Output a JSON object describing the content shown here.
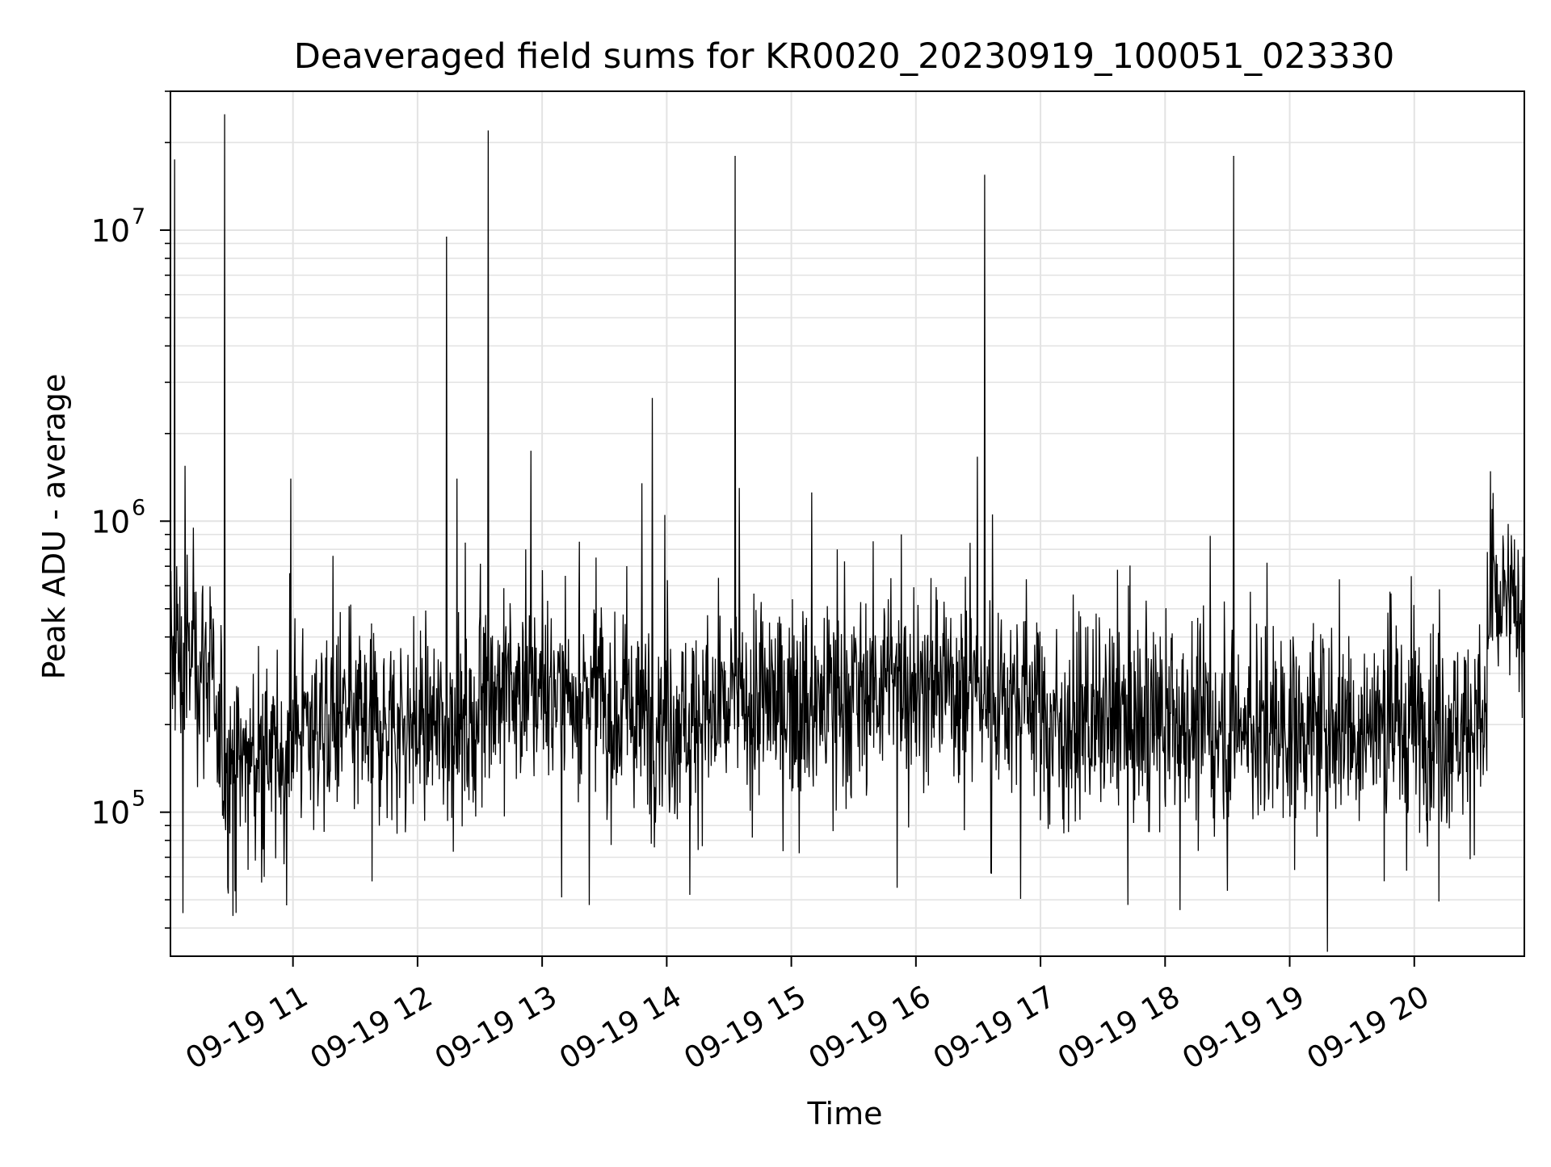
{
  "chart_data": {
    "type": "line",
    "title": "Deaveraged field sums for KR0020_20230919_100051_023330",
    "xlabel": "Time",
    "ylabel": "Peak ADU - average",
    "yscale": "log",
    "ylim": [
      32000,
      30000000
    ],
    "xlim": [
      "2023-09-19 10:01",
      "2023-09-19 20:53"
    ],
    "grid": true,
    "line_color": "#000000",
    "grid_color": "#e3e3e3",
    "x_ticks": [
      {
        "value": "2023-09-19 11:00",
        "label": "09-19 11"
      },
      {
        "value": "2023-09-19 12:00",
        "label": "09-19 12"
      },
      {
        "value": "2023-09-19 13:00",
        "label": "09-19 13"
      },
      {
        "value": "2023-09-19 14:00",
        "label": "09-19 14"
      },
      {
        "value": "2023-09-19 15:00",
        "label": "09-19 15"
      },
      {
        "value": "2023-09-19 16:00",
        "label": "09-19 16"
      },
      {
        "value": "2023-09-19 17:00",
        "label": "09-19 17"
      },
      {
        "value": "2023-09-19 18:00",
        "label": "09-19 18"
      },
      {
        "value": "2023-09-19 19:00",
        "label": "09-19 19"
      },
      {
        "value": "2023-09-19 20:00",
        "label": "09-19 20"
      }
    ],
    "y_ticks": [
      {
        "value": 100000,
        "base": "10",
        "exp": "5"
      },
      {
        "value": 1000000,
        "base": "10",
        "exp": "6"
      },
      {
        "value": 10000000,
        "base": "10",
        "exp": "7"
      }
    ],
    "series": [
      {
        "values": [
          [
            "2023-09-19 10:03",
            17500000
          ],
          [
            "2023-09-19 10:04",
            700000
          ],
          [
            "2023-09-19 10:07",
            45000
          ],
          [
            "2023-09-19 10:08",
            1550000
          ],
          [
            "2023-09-19 10:12",
            950000
          ],
          [
            "2023-09-19 10:17",
            130000
          ],
          [
            "2023-09-19 10:27",
            25000000
          ],
          [
            "2023-09-19 10:31",
            44000
          ],
          [
            "2023-09-19 10:59",
            1400000
          ],
          [
            "2023-09-19 12:14",
            9500000
          ],
          [
            "2023-09-19 12:19",
            1400000
          ],
          [
            "2023-09-19 12:34",
            22000000
          ],
          [
            "2023-09-19 12:52",
            800000
          ],
          [
            "2023-09-19 13:18",
            850000
          ],
          [
            "2023-09-19 13:48",
            1350000
          ],
          [
            "2023-09-19 13:53",
            2650000
          ],
          [
            "2023-09-19 13:59",
            1050000
          ],
          [
            "2023-09-19 14:11",
            52000
          ],
          [
            "2023-09-19 14:33",
            18000000
          ],
          [
            "2023-09-19 14:35",
            1300000
          ],
          [
            "2023-09-19 15:22",
            800000
          ],
          [
            "2023-09-19 15:53",
            900000
          ],
          [
            "2023-09-19 15:51",
            55000
          ],
          [
            "2023-09-19 16:33",
            15500000
          ],
          [
            "2023-09-19 16:36",
            62000
          ],
          [
            "2023-09-19 17:42",
            48000
          ],
          [
            "2023-09-19 18:33",
            18000000
          ],
          [
            "2023-09-19 18:49",
            720000
          ],
          [
            "2023-09-19 20:38",
            1250000
          ]
        ]
      }
    ],
    "baseline_segments": [
      {
        "start": "2023-09-19 10:01",
        "end": "2023-09-19 10:22",
        "median": 330000
      },
      {
        "start": "2023-09-19 10:22",
        "end": "2023-09-19 11:00",
        "median": 150000
      },
      {
        "start": "2023-09-19 11:00",
        "end": "2023-09-19 12:30",
        "median": 200000
      },
      {
        "start": "2023-09-19 12:30",
        "end": "2023-09-19 13:30",
        "median": 260000
      },
      {
        "start": "2023-09-19 13:30",
        "end": "2023-09-19 14:30",
        "median": 215000
      },
      {
        "start": "2023-09-19 14:30",
        "end": "2023-09-19 15:30",
        "median": 240000
      },
      {
        "start": "2023-09-19 15:30",
        "end": "2023-09-19 16:30",
        "median": 275000
      },
      {
        "start": "2023-09-19 16:30",
        "end": "2023-09-19 17:00",
        "median": 255000
      },
      {
        "start": "2023-09-19 17:00",
        "end": "2023-09-19 19:30",
        "median": 200000
      },
      {
        "start": "2023-09-19 19:30",
        "end": "2023-09-19 20:35",
        "median": 200000
      },
      {
        "start": "2023-09-19 20:35",
        "end": "2023-09-19 20:53",
        "median": 500000
      }
    ]
  }
}
